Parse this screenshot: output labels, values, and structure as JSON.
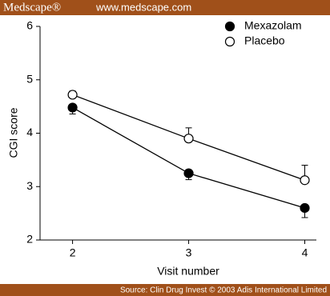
{
  "header": {
    "logo": "Medscape®",
    "url": "www.medscape.com"
  },
  "footer": {
    "source": "Source: Clin Drug Invest © 2003 Adis International Limited"
  },
  "chart_data": {
    "type": "line",
    "x_label": "Visit number",
    "y_label": "CGI score",
    "x": [
      2,
      3,
      4
    ],
    "series": [
      {
        "name": "Mexazolam",
        "color": "#000000",
        "marker_fill": "#000000",
        "values": [
          4.48,
          3.25,
          2.6
        ],
        "errors": [
          0.12,
          0.12,
          0.18
        ],
        "error_side": "down"
      },
      {
        "name": "Placebo",
        "color": "#000000",
        "marker_fill": "#ffffff",
        "values": [
          4.72,
          3.9,
          3.12
        ],
        "errors": [
          0.07,
          0.2,
          0.28
        ],
        "error_side": "up"
      }
    ],
    "xlim": [
      1.72,
      4.1
    ],
    "xticks": [
      2,
      3,
      4
    ],
    "ylim": [
      2,
      6
    ],
    "yticks": [
      2,
      3,
      4,
      5,
      6
    ],
    "legend": "upper right"
  }
}
